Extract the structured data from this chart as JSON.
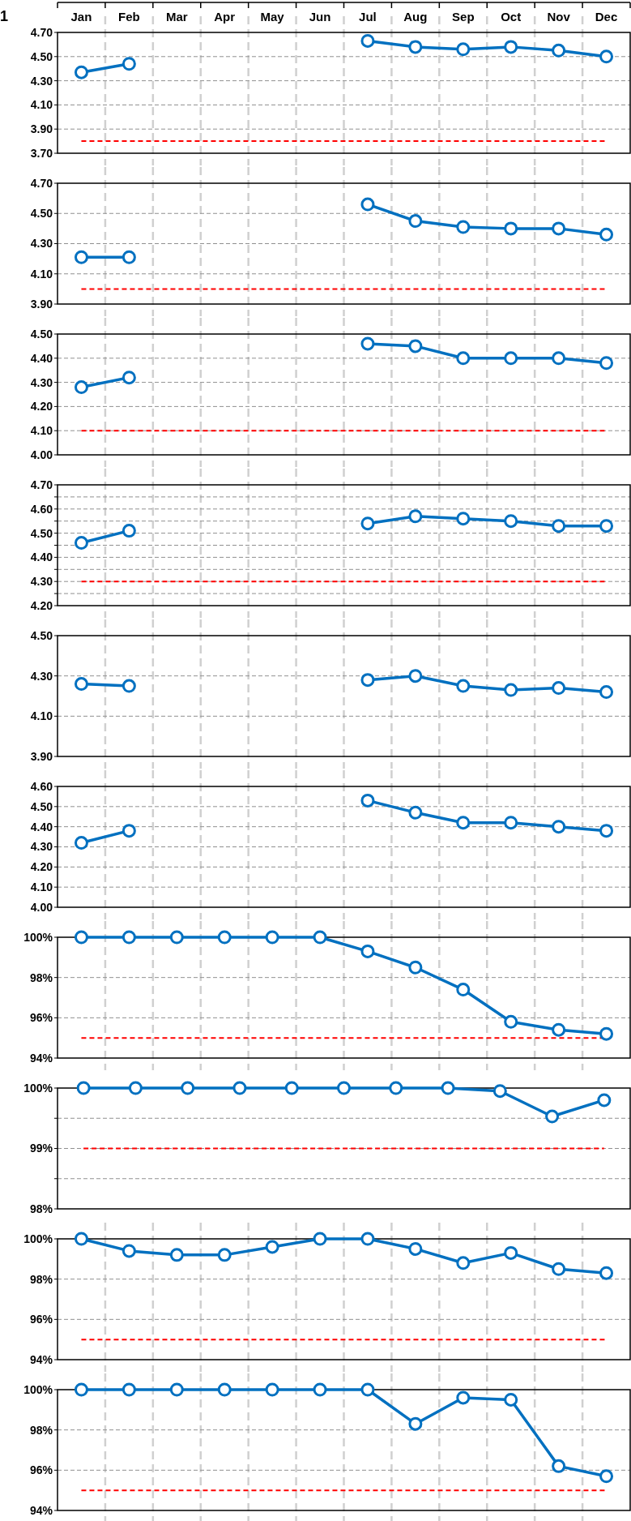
{
  "chart_data": [
    {
      "type": "line",
      "annotations": [
        "1"
      ],
      "categories": [
        "Jan",
        "Feb",
        "Mar",
        "Apr",
        "May",
        "Jun",
        "Jul",
        "Aug",
        "Sep",
        "Oct",
        "Nov",
        "Dec"
      ],
      "series": [
        {
          "color": "#0070c0",
          "values": [
            4.37,
            4.44,
            null,
            null,
            null,
            null,
            4.63,
            4.58,
            4.56,
            4.58,
            4.55,
            4.5
          ]
        }
      ],
      "ylim": [
        3.7,
        4.7
      ],
      "yticks": [
        {
          "value": 3.7,
          "label": "3.70"
        },
        {
          "value": 3.9,
          "label": "3.90"
        },
        {
          "value": 4.1,
          "label": "4.10"
        },
        {
          "value": 4.3,
          "label": "4.30"
        },
        {
          "value": 4.5,
          "label": "4.50"
        },
        {
          "value": 4.7,
          "label": "4.70"
        }
      ],
      "ref_lines": [
        {
          "axis": "y",
          "value": 3.8,
          "color": "#ff0000",
          "line_style": "dashed"
        }
      ],
      "grid": true,
      "marker": "circle"
    },
    {
      "type": "line",
      "categories": [
        null,
        null,
        null,
        null,
        null,
        null,
        null,
        null,
        null,
        null,
        null,
        null
      ],
      "series": [
        {
          "color": "#0070c0",
          "values": [
            4.21,
            4.21,
            null,
            null,
            null,
            null,
            4.56,
            4.45,
            4.41,
            4.4,
            4.4,
            4.36
          ]
        }
      ],
      "ylim": [
        3.9,
        4.7
      ],
      "yticks": [
        {
          "value": 3.9,
          "label": "3.90"
        },
        {
          "value": 4.1,
          "label": "4.10"
        },
        {
          "value": 4.3,
          "label": "4.30"
        },
        {
          "value": 4.5,
          "label": "4.50"
        },
        {
          "value": 4.7,
          "label": "4.70"
        }
      ],
      "ref_lines": [
        {
          "axis": "y",
          "value": 4.0,
          "color": "#ff0000",
          "line_style": "dashed"
        }
      ],
      "grid": true,
      "marker": "circle",
      "tick_labels": "y"
    },
    {
      "type": "line",
      "categories": [
        null,
        null,
        null,
        null,
        null,
        null,
        null,
        null,
        null,
        null,
        null,
        null
      ],
      "series": [
        {
          "color": "#0070c0",
          "values": [
            4.28,
            4.32,
            null,
            null,
            null,
            null,
            4.46,
            4.45,
            4.4,
            4.4,
            4.4,
            4.38
          ]
        }
      ],
      "ylim": [
        4.0,
        4.5
      ],
      "yticks": [
        {
          "value": 4.0,
          "label": "4.00"
        },
        {
          "value": 4.1,
          "label": "4.10"
        },
        {
          "value": 4.2,
          "label": "4.20"
        },
        {
          "value": 4.3,
          "label": "4.30"
        },
        {
          "value": 4.4,
          "label": "4.40"
        },
        {
          "value": 4.5,
          "label": "4.50"
        }
      ],
      "ref_lines": [
        {
          "axis": "y",
          "value": 4.1,
          "color": "#ff0000",
          "line_style": "dashed"
        }
      ],
      "grid": true,
      "marker": "circle",
      "tick_labels": "y"
    },
    {
      "type": "line",
      "categories": [
        null,
        null,
        null,
        null,
        null,
        null,
        null,
        null,
        null,
        null,
        null,
        null
      ],
      "series": [
        {
          "color": "#0070c0",
          "values": [
            4.46,
            4.51,
            null,
            null,
            null,
            null,
            4.54,
            4.57,
            4.56,
            4.55,
            4.53,
            4.53
          ]
        }
      ],
      "ylim": [
        4.2,
        4.7
      ],
      "yticks": [
        {
          "value": 4.2,
          "label": "4.20"
        },
        {
          "value": 4.25,
          "label": null
        },
        {
          "value": 4.3,
          "label": "4.30"
        },
        {
          "value": 4.35,
          "label": null
        },
        {
          "value": 4.4,
          "label": "4.40"
        },
        {
          "value": 4.45,
          "label": null
        },
        {
          "value": 4.5,
          "label": "4.50"
        },
        {
          "value": 4.55,
          "label": null
        },
        {
          "value": 4.6,
          "label": "4.60"
        },
        {
          "value": 4.65,
          "label": null
        },
        {
          "value": 4.7,
          "label": "4.70"
        }
      ],
      "ref_lines": [
        {
          "axis": "y",
          "value": 4.3,
          "color": "#ff0000",
          "line_style": "dashed"
        }
      ],
      "grid": true,
      "marker": "circle",
      "tick_labels": "y"
    },
    {
      "type": "line",
      "categories": [
        null,
        null,
        null,
        null,
        null,
        null,
        null,
        null,
        null,
        null,
        null,
        null
      ],
      "series": [
        {
          "color": "#0070c0",
          "values": [
            4.26,
            4.25,
            null,
            null,
            null,
            null,
            4.28,
            4.3,
            4.25,
            4.23,
            4.24,
            4.22
          ]
        }
      ],
      "ylim": [
        3.9,
        4.5
      ],
      "yticks": [
        {
          "value": 3.9,
          "label": "3.90"
        },
        {
          "value": 4.1,
          "label": "4.10"
        },
        {
          "value": 4.3,
          "label": "4.30"
        },
        {
          "value": 4.5,
          "label": "4.50"
        }
      ],
      "grid": true,
      "marker": "circle",
      "tick_labels": "y"
    },
    {
      "type": "line",
      "categories": [
        null,
        null,
        null,
        null,
        null,
        null,
        null,
        null,
        null,
        null,
        null,
        null
      ],
      "series": [
        {
          "color": "#0070c0",
          "values": [
            4.32,
            4.38,
            null,
            null,
            null,
            null,
            4.53,
            4.47,
            4.42,
            4.42,
            4.4,
            4.38
          ]
        }
      ],
      "ylim": [
        4.0,
        4.6
      ],
      "yticks": [
        {
          "value": 4.0,
          "label": "4.00"
        },
        {
          "value": 4.1,
          "label": "4.10"
        },
        {
          "value": 4.2,
          "label": "4.20"
        },
        {
          "value": 4.3,
          "label": "4.30"
        },
        {
          "value": 4.4,
          "label": "4.40"
        },
        {
          "value": 4.5,
          "label": "4.50"
        },
        {
          "value": 4.6,
          "label": "4.60"
        }
      ],
      "grid": true,
      "marker": "circle",
      "tick_labels": "y"
    },
    {
      "type": "line",
      "categories": [
        null,
        null,
        null,
        null,
        null,
        null,
        null,
        null,
        null,
        null,
        null,
        null
      ],
      "series": [
        {
          "color": "#0070c0",
          "values": [
            100,
            100,
            100,
            100,
            100,
            100,
            99.3,
            98.5,
            97.4,
            95.8,
            95.4,
            95.2
          ]
        }
      ],
      "ylim": [
        94,
        100
      ],
      "yticks": [
        {
          "value": 94,
          "label": "94%"
        },
        {
          "value": 96,
          "label": "96%"
        },
        {
          "value": 98,
          "label": "98%"
        },
        {
          "value": 100,
          "label": "100%"
        }
      ],
      "ref_lines": [
        {
          "axis": "y",
          "value": 95,
          "color": "#ff0000",
          "line_style": "dashed"
        }
      ],
      "grid": true,
      "marker": "circle",
      "tick_labels": "y"
    },
    {
      "type": "line",
      "categories": [
        null,
        null,
        null,
        null,
        null,
        null,
        null,
        null,
        null,
        null,
        null
      ],
      "series": [
        {
          "color": "#0070c0",
          "values": [
            100,
            100,
            100,
            100,
            100,
            100,
            100,
            100,
            99.95,
            99.53,
            99.8
          ]
        }
      ],
      "ylim": [
        98,
        100
      ],
      "yticks": [
        {
          "value": 98,
          "label": "98%"
        },
        {
          "value": 98.5,
          "label": null
        },
        {
          "value": 99,
          "label": "99%"
        },
        {
          "value": 99.5,
          "label": null
        },
        {
          "value": 100,
          "label": "100%"
        }
      ],
      "ref_lines": [
        {
          "axis": "y",
          "value": 99,
          "color": "#ff0000",
          "line_style": "dashed"
        }
      ],
      "grid": "y",
      "marker": "circle",
      "tick_labels": "y"
    },
    {
      "type": "line",
      "categories": [
        null,
        null,
        null,
        null,
        null,
        null,
        null,
        null,
        null,
        null,
        null,
        null
      ],
      "series": [
        {
          "color": "#0070c0",
          "values": [
            100,
            99.4,
            99.2,
            99.2,
            99.6,
            100,
            100,
            99.5,
            98.8,
            99.3,
            98.5,
            98.3
          ]
        }
      ],
      "ylim": [
        94,
        100
      ],
      "yticks": [
        {
          "value": 94,
          "label": "94%"
        },
        {
          "value": 96,
          "label": "96%"
        },
        {
          "value": 98,
          "label": "98%"
        },
        {
          "value": 100,
          "label": "100%"
        }
      ],
      "ref_lines": [
        {
          "axis": "y",
          "value": 95,
          "color": "#ff0000",
          "line_style": "dashed"
        }
      ],
      "grid": true,
      "marker": "circle",
      "tick_labels": "y"
    },
    {
      "type": "line",
      "categories": [
        null,
        null,
        null,
        null,
        null,
        null,
        null,
        null,
        null,
        null,
        null,
        null
      ],
      "series": [
        {
          "color": "#0070c0",
          "values": [
            100,
            100,
            100,
            100,
            100,
            100,
            100,
            98.3,
            99.6,
            99.5,
            96.2,
            95.7
          ]
        }
      ],
      "ylim": [
        94,
        100
      ],
      "yticks": [
        {
          "value": 94,
          "label": "94%"
        },
        {
          "value": 96,
          "label": "96%"
        },
        {
          "value": 98,
          "label": "98%"
        },
        {
          "value": 100,
          "label": "100%"
        }
      ],
      "ref_lines": [
        {
          "axis": "y",
          "value": 95,
          "color": "#ff0000",
          "line_style": "dashed"
        }
      ],
      "grid": true,
      "marker": "circle",
      "tick_labels": "y"
    }
  ]
}
